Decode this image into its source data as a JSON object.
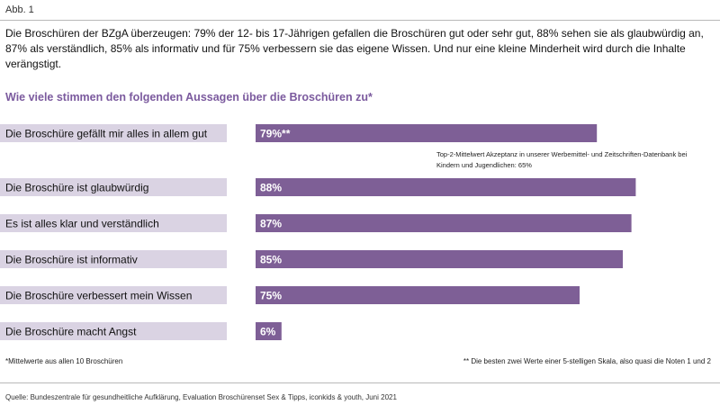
{
  "figure_label": "Abb. 1",
  "intro": "Die Broschüren der BZgA überzeugen: 79% der 12- bis 17-Jährigen gefallen die Broschüren gut oder sehr gut, 88% sehen sie als glaubwürdig an, 87% als verständlich, 85% als informativ und für 75% verbessern sie das eigene Wissen. Und nur eine kleine Minderheit wird durch die Inhalte verängstigt.",
  "question": "Wie viele stimmen den folgenden Aussagen über die Broschüren zu*",
  "top2_note": "Top-2-Mittelwert Akzeptanz in unserer Werbemittel- und Zeitschriften-Datenbank bei Kindern und Jugendlichen: 65%",
  "footnote_left": "*Mittelwerte aus allen 10 Broschüren",
  "footnote_right": "** Die besten zwei Werte einer 5-stelligen Skala, also quasi die Noten 1 und 2",
  "source": "Quelle: Bundeszentrale für gesundheitliche Aufklärung, Evaluation Broschürenset Sex & Tipps, iconkids & youth, Juni 2021",
  "colors": {
    "bar": "#7e5f96",
    "label_bg": "#dad3e3",
    "accent_text": "#7b5a9e"
  },
  "chart_data": {
    "type": "bar",
    "orientation": "horizontal",
    "categories": [
      "Die Broschüre gefällt mir alles in allem gut",
      "Die Broschüre ist glaubwürdig",
      "Es ist alles klar und verständlich",
      "Die Broschüre ist informativ",
      "Die Broschüre verbessert mein Wissen",
      "Die Broschüre macht Angst"
    ],
    "values": [
      79,
      88,
      87,
      85,
      75,
      6
    ],
    "value_labels": [
      "79%**",
      "88%",
      "87%",
      "85%",
      "75%",
      "6%"
    ],
    "unit": "%",
    "xlim": [
      0,
      100
    ],
    "grid": false,
    "legend": "none"
  }
}
